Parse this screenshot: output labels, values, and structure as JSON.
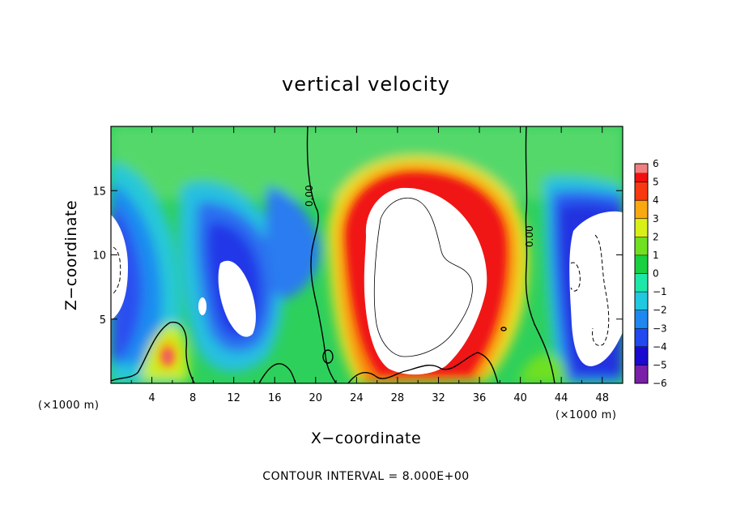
{
  "chart_data": {
    "type": "heatmap",
    "title": "vertical velocity",
    "xlabel": "X−coordinate",
    "ylabel": "Z−coordinate",
    "x_unit_left": "(×1000 m)",
    "x_unit_right": "(×1000 m)",
    "xlim": [
      0,
      50
    ],
    "ylim": [
      0,
      20
    ],
    "x_ticks": [
      4,
      8,
      12,
      16,
      20,
      24,
      28,
      32,
      36,
      40,
      44,
      48
    ],
    "x_tick_labels": [
      "4",
      "8",
      "12",
      "16",
      "20",
      "24",
      "28",
      "32",
      "36",
      "40",
      "44",
      "48"
    ],
    "y_ticks": [
      5,
      10,
      15
    ],
    "y_tick_labels": [
      "5",
      "10",
      "15"
    ],
    "colorbar": {
      "levels": [
        -6,
        -5,
        -4,
        -3,
        -2,
        -1,
        0,
        1,
        2,
        3,
        4,
        5,
        6
      ],
      "labels": [
        "−6",
        "−5",
        "−4",
        "−3",
        "−2",
        "−1",
        "0",
        "1",
        "2",
        "3",
        "4",
        "5",
        "6"
      ],
      "colors": [
        "#7a1fa8",
        "#1a0ad0",
        "#2248f0",
        "#1e88f0",
        "#20c8e0",
        "#1ee8a8",
        "#18d040",
        "#70e020",
        "#d8f018",
        "#f8a810",
        "#f83810",
        "#f01010",
        "#f08080"
      ]
    },
    "contour_labels": [
      "0.00",
      "0.00"
    ],
    "contour_interval_text": "CONTOUR INTERVAL = 8.000E+00"
  }
}
